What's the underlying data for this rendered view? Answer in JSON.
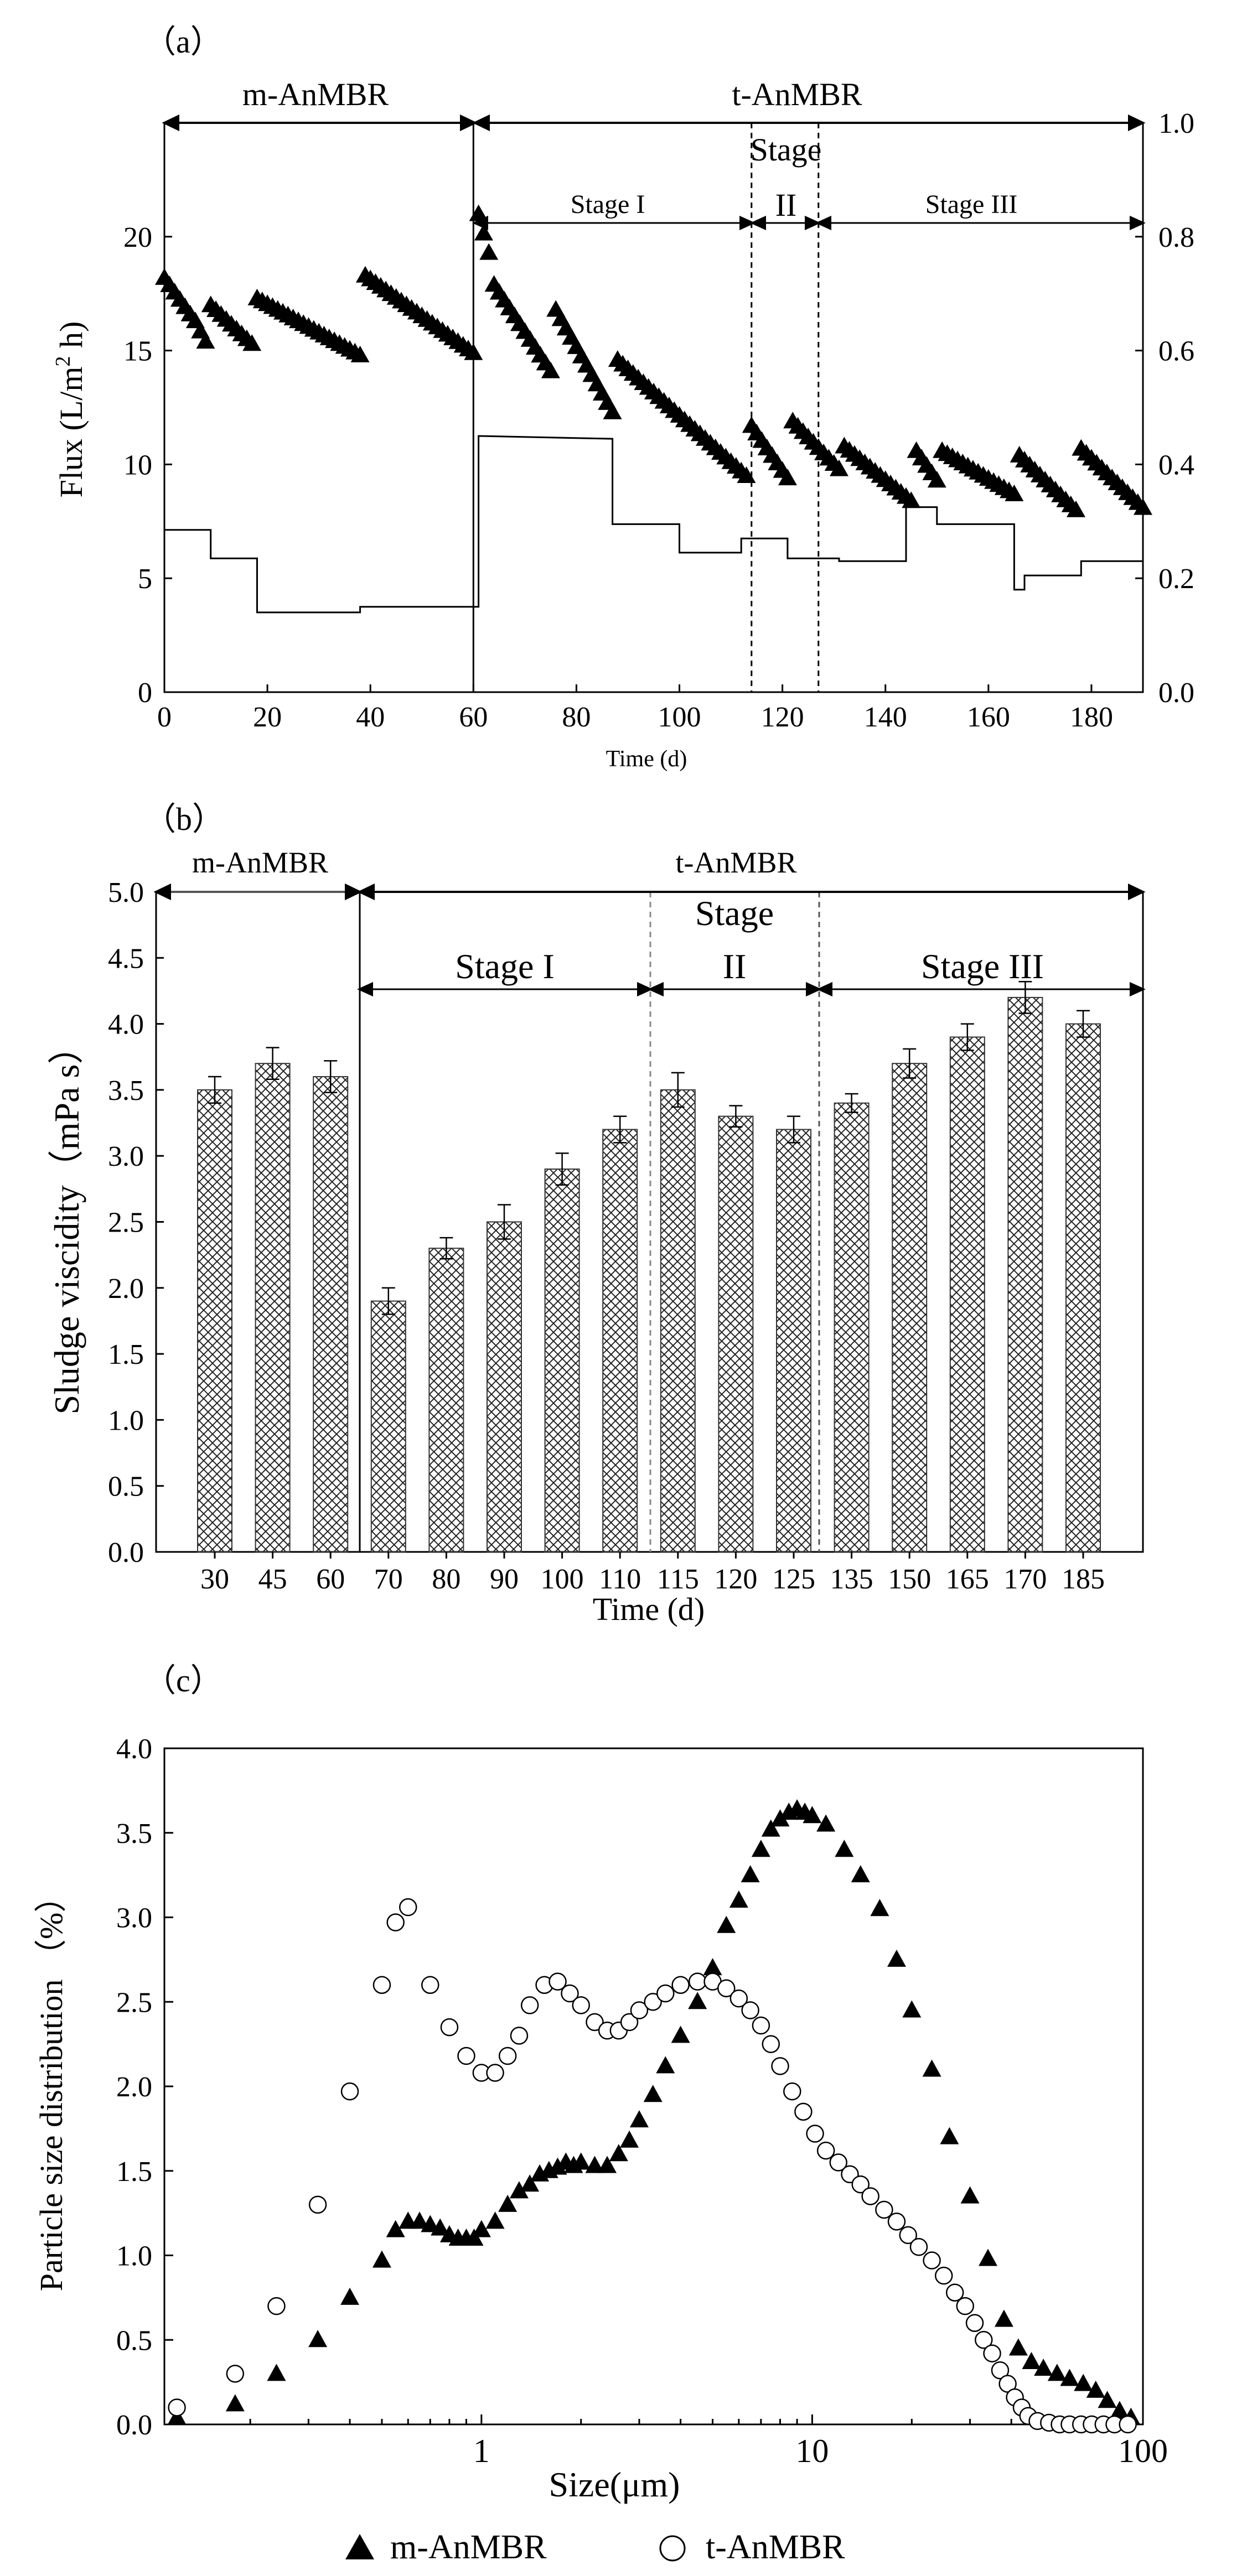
{
  "chart_data": [
    {
      "panel_label": "（a）",
      "type": "scatter",
      "title": "",
      "xlabel": "Time (d)",
      "ylabel": "Flux (L/m",
      "ylabel_sup": "2",
      "ylabel_tail": " h)",
      "xlim": [
        0,
        190
      ],
      "ylim": [
        0,
        25
      ],
      "y2lim": [
        0,
        1.0
      ],
      "x_ticks": [
        0,
        20,
        40,
        60,
        80,
        100,
        120,
        140,
        160,
        180
      ],
      "x_tick_labels": [
        "0",
        "20",
        "40",
        "60",
        "80",
        "100",
        "120",
        "140",
        "160",
        "180"
      ],
      "y_ticks": [
        0,
        5,
        10,
        15,
        20
      ],
      "y_tick_labels": [
        "0",
        "5",
        "10",
        "15",
        "20"
      ],
      "y2_ticks": [
        0,
        0.2,
        0.4,
        0.6,
        0.8,
        1.0
      ],
      "y2_tick_labels": [
        "0.0",
        "0.2",
        "0.4",
        "0.6",
        "0.8",
        "1.0"
      ],
      "annotations": {
        "m_anmbr": "m-AnMBR",
        "t_anmbr": "t-AnMBR",
        "stage1": "Stage I",
        "stage2_top": "Stage",
        "stage2_bottom": "II",
        "stage3": "Stage III"
      },
      "region_boundaries": [
        60,
        114,
        127
      ],
      "flux_segments": [
        {
          "start": 0,
          "end": 5,
          "y0": 18.2,
          "y1": 16.6
        },
        {
          "start": 6,
          "end": 8,
          "y0": 16.3,
          "y1": 15.4
        },
        {
          "start": 9,
          "end": 17,
          "y0": 17.0,
          "y1": 15.3
        },
        {
          "start": 18,
          "end": 38,
          "y0": 17.3,
          "y1": 14.8
        },
        {
          "start": 39,
          "end": 60,
          "y0": 18.3,
          "y1": 14.9
        },
        {
          "start": 61,
          "end": 63,
          "y0": 21.0,
          "y1": 19.3
        },
        {
          "start": 64,
          "end": 75,
          "y0": 17.9,
          "y1": 14.1
        },
        {
          "start": 76,
          "end": 87,
          "y0": 16.8,
          "y1": 12.3
        },
        {
          "start": 88,
          "end": 113,
          "y0": 14.6,
          "y1": 9.5
        },
        {
          "start": 114,
          "end": 121,
          "y0": 11.7,
          "y1": 9.4
        },
        {
          "start": 122,
          "end": 131,
          "y0": 11.9,
          "y1": 9.8
        },
        {
          "start": 132,
          "end": 145,
          "y0": 10.8,
          "y1": 8.4
        },
        {
          "start": 146,
          "end": 150,
          "y0": 10.6,
          "y1": 9.3
        },
        {
          "start": 151,
          "end": 165,
          "y0": 10.6,
          "y1": 8.7
        },
        {
          "start": 166,
          "end": 177,
          "y0": 10.4,
          "y1": 8.0
        },
        {
          "start": 178,
          "end": 190,
          "y0": 10.7,
          "y1": 8.1
        }
      ],
      "secondary_line": {
        "x": [
          0,
          9,
          9,
          18,
          18,
          38,
          38,
          60,
          60,
          61,
          61,
          87,
          87,
          100,
          100,
          112,
          112,
          121,
          121,
          127,
          127,
          131,
          131,
          144,
          144,
          146,
          146,
          150,
          150,
          165,
          165,
          167,
          167,
          178,
          178,
          190
        ],
        "y": [
          0.285,
          0.285,
          0.235,
          0.235,
          0.14,
          0.14,
          0.15,
          0.15,
          0.15,
          0.15,
          0.45,
          0.445,
          0.295,
          0.295,
          0.245,
          0.245,
          0.27,
          0.27,
          0.235,
          0.235,
          0.235,
          0.235,
          0.23,
          0.23,
          0.325,
          0.325,
          0.325,
          0.325,
          0.295,
          0.295,
          0.18,
          0.18,
          0.205,
          0.205,
          0.23,
          0.23
        ]
      }
    },
    {
      "panel_label": "（b）",
      "type": "bar",
      "title": "",
      "xlabel": "Time (d)",
      "ylabel": "Sludge viscidity（mPa s）",
      "ylim": [
        0,
        5.0
      ],
      "y_ticks": [
        0,
        0.5,
        1.0,
        1.5,
        2.0,
        2.5,
        3.0,
        3.5,
        4.0,
        4.5,
        5.0
      ],
      "y_tick_labels": [
        "0.0",
        "0.5",
        "1.0",
        "1.5",
        "2.0",
        "2.5",
        "3.0",
        "3.5",
        "4.0",
        "4.5",
        "5.0"
      ],
      "categories": [
        "30",
        "45",
        "60",
        "70",
        "80",
        "90",
        "100",
        "110",
        "115",
        "120",
        "125",
        "135",
        "150",
        "165",
        "170",
        "185"
      ],
      "values": [
        3.5,
        3.7,
        3.6,
        1.9,
        2.3,
        2.5,
        2.9,
        3.2,
        3.5,
        3.3,
        3.2,
        3.4,
        3.7,
        3.9,
        4.2,
        4.0
      ],
      "errors": [
        0.1,
        0.12,
        0.12,
        0.1,
        0.08,
        0.13,
        0.12,
        0.1,
        0.13,
        0.08,
        0.1,
        0.07,
        0.11,
        0.1,
        0.12,
        0.1
      ],
      "annotations": {
        "m_anmbr": "m-AnMBR",
        "t_anmbr": "t-AnMBR",
        "stage1": "Stage I",
        "stage2_top": "Stage",
        "stage2_bottom": "II",
        "stage3": "Stage III"
      }
    },
    {
      "panel_label": "（c）",
      "type": "scatter",
      "title": "",
      "xlabel": "Size(μm)",
      "ylabel": "Particle size distribution （%）",
      "x_scale": "log",
      "xlim": [
        0.11,
        100
      ],
      "ylim": [
        0,
        4.0
      ],
      "x_tick_labels": [
        "1",
        "10",
        "100"
      ],
      "y_ticks": [
        0,
        0.5,
        1.0,
        1.5,
        2.0,
        2.5,
        3.0,
        3.5,
        4.0
      ],
      "y_tick_labels": [
        "0.0",
        "0.5",
        "1.0",
        "1.5",
        "2.0",
        "2.5",
        "3.0",
        "3.5",
        "4.0"
      ],
      "legend_position": "bottom",
      "series": [
        {
          "name": "m-AnMBR",
          "marker": "triangle",
          "x": [
            0.12,
            0.18,
            0.24,
            0.32,
            0.4,
            0.5,
            0.55,
            0.6,
            0.65,
            0.7,
            0.75,
            0.8,
            0.85,
            0.9,
            0.95,
            1.0,
            1.1,
            1.2,
            1.3,
            1.4,
            1.5,
            1.6,
            1.7,
            1.8,
            1.9,
            2.0,
            2.2,
            2.4,
            2.6,
            2.8,
            3.0,
            3.3,
            3.6,
            4.0,
            4.5,
            5.0,
            5.5,
            6.0,
            6.5,
            7.0,
            7.5,
            8.0,
            8.5,
            9.0,
            9.5,
            10.0,
            11.0,
            12.5,
            14.0,
            16.0,
            18.0,
            20.0,
            23.0,
            26.0,
            30.0,
            34.0,
            38.0,
            42.0,
            46.0,
            50.0,
            55.0,
            60.0,
            66.0,
            72.0,
            78.0,
            85.0,
            92.0
          ],
          "y": [
            0.04,
            0.12,
            0.3,
            0.5,
            0.75,
            0.97,
            1.15,
            1.2,
            1.2,
            1.18,
            1.16,
            1.12,
            1.1,
            1.1,
            1.1,
            1.15,
            1.2,
            1.3,
            1.38,
            1.42,
            1.48,
            1.5,
            1.52,
            1.55,
            1.53,
            1.55,
            1.53,
            1.53,
            1.6,
            1.68,
            1.8,
            1.95,
            2.12,
            2.3,
            2.5,
            2.7,
            2.95,
            3.1,
            3.25,
            3.4,
            3.52,
            3.58,
            3.62,
            3.64,
            3.62,
            3.6,
            3.55,
            3.4,
            3.25,
            3.05,
            2.75,
            2.45,
            2.1,
            1.7,
            1.35,
            0.98,
            0.62,
            0.45,
            0.37,
            0.33,
            0.3,
            0.27,
            0.24,
            0.2,
            0.14,
            0.08,
            0.04
          ]
        },
        {
          "name": "t-AnMBR",
          "marker": "circle",
          "x": [
            0.12,
            0.18,
            0.24,
            0.32,
            0.4,
            0.5,
            0.55,
            0.6,
            0.7,
            0.8,
            0.9,
            1.0,
            1.1,
            1.2,
            1.3,
            1.4,
            1.55,
            1.7,
            1.85,
            2.0,
            2.2,
            2.4,
            2.6,
            2.8,
            3.0,
            3.3,
            3.6,
            4.0,
            4.5,
            5.0,
            5.5,
            6.0,
            6.5,
            7.0,
            7.5,
            8.0,
            8.7,
            9.4,
            10.2,
            11.0,
            12.0,
            13.0,
            14.0,
            15.0,
            16.5,
            18.0,
            19.5,
            21.0,
            23.0,
            25.0,
            27.0,
            29.0,
            31.0,
            33.0,
            35.0,
            37.0,
            39.0,
            41.0,
            43.0,
            45.0,
            48.0,
            52.0,
            56.0,
            60.0,
            65.0,
            70.0,
            76.0,
            82.0,
            90.0
          ],
          "y": [
            0.1,
            0.3,
            0.7,
            1.3,
            1.97,
            2.6,
            2.97,
            3.06,
            2.6,
            2.35,
            2.18,
            2.08,
            2.08,
            2.18,
            2.3,
            2.48,
            2.6,
            2.62,
            2.55,
            2.48,
            2.38,
            2.33,
            2.33,
            2.38,
            2.45,
            2.5,
            2.55,
            2.6,
            2.62,
            2.62,
            2.58,
            2.52,
            2.45,
            2.36,
            2.25,
            2.12,
            1.97,
            1.85,
            1.72,
            1.62,
            1.55,
            1.48,
            1.42,
            1.35,
            1.27,
            1.2,
            1.12,
            1.05,
            0.97,
            0.88,
            0.78,
            0.7,
            0.6,
            0.5,
            0.42,
            0.32,
            0.24,
            0.16,
            0.1,
            0.05,
            0.02,
            0.01,
            0.0,
            0.0,
            0.0,
            0.0,
            0.0,
            0.0,
            0.0
          ]
        }
      ]
    }
  ]
}
